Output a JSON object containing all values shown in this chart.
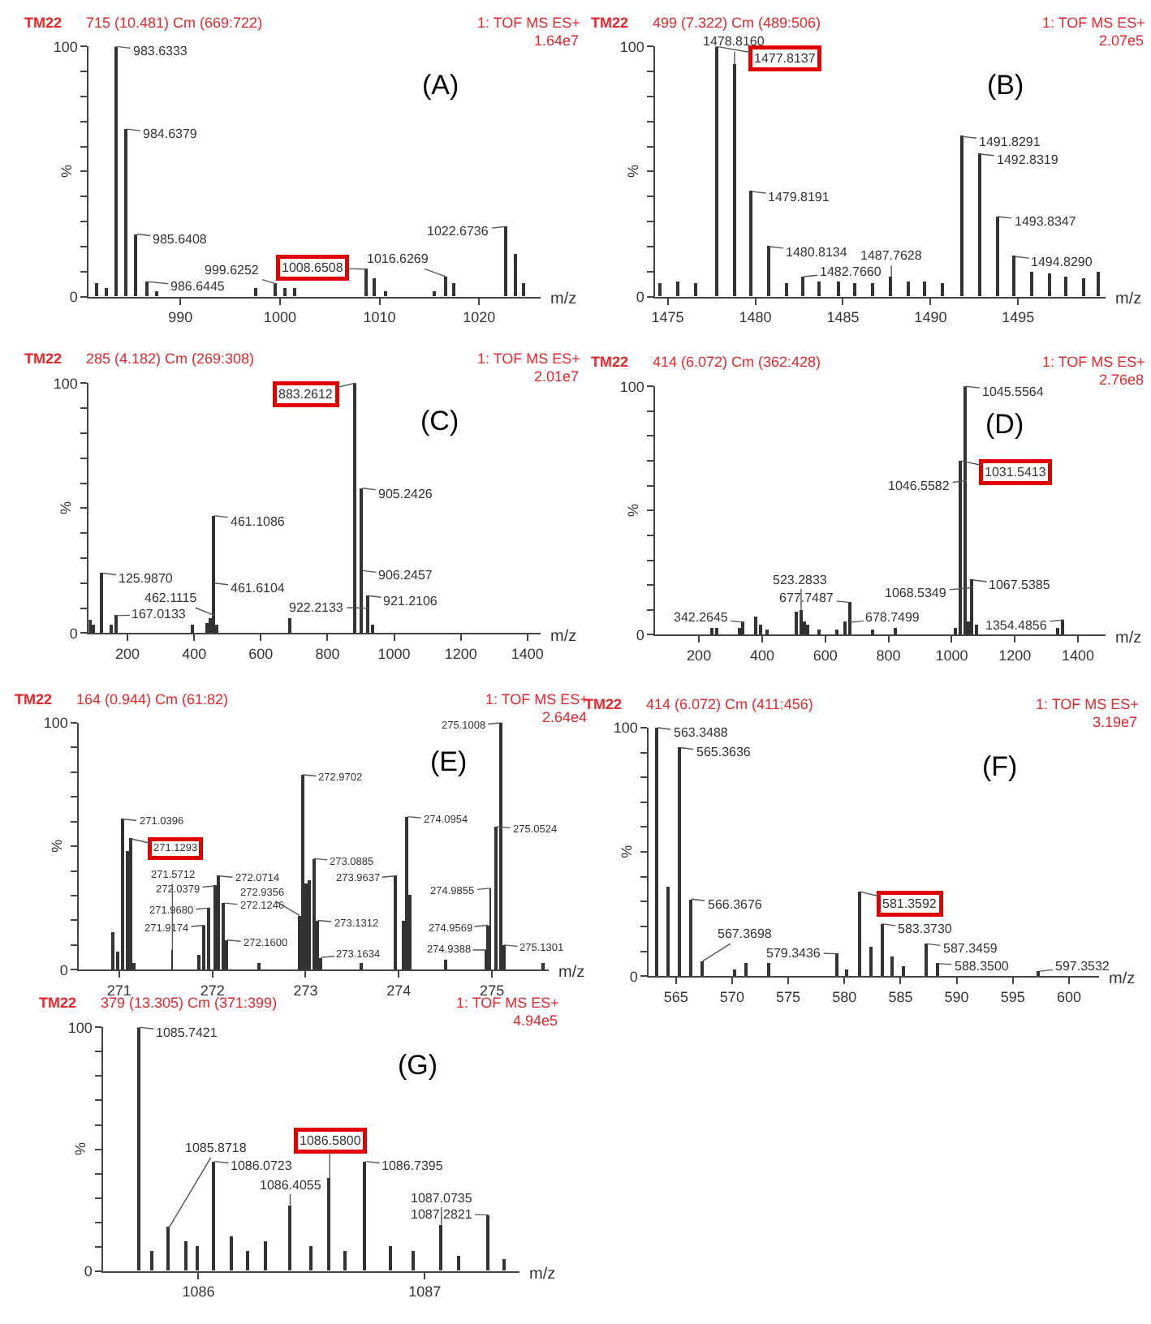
{
  "chart_data": [
    {
      "type": "bar",
      "color": "#333333",
      "xlabel": "m/z",
      "ylabel": "%",
      "xlim": [
        980.8,
        1026.2
      ],
      "xticks": [
        990,
        1000,
        1010,
        1020
      ],
      "ylim": [
        0,
        100
      ],
      "yticks": [
        0,
        {
          "value": 10,
          "label": null
        },
        {
          "value": 20,
          "label": null
        },
        {
          "value": 30,
          "label": null
        },
        {
          "value": 40,
          "label": null
        },
        {
          "value": 50,
          "label": null
        },
        {
          "value": 60,
          "label": null
        },
        {
          "value": 70,
          "label": null
        },
        {
          "value": 80,
          "label": null
        },
        {
          "value": 90,
          "label": null
        },
        100
      ],
      "x": [
        981.6,
        982.6,
        983.6333,
        984.6379,
        985.6408,
        986.6445,
        987.6,
        997.6,
        999.6252,
        1000.6,
        1001.6,
        1008.6508,
        1009.6,
        1010.6,
        1015.6,
        1016.6269,
        1017.6,
        1022.6736,
        1023.7,
        1024.6
      ],
      "values": [
        5,
        3,
        100,
        67,
        25,
        6,
        2,
        3,
        5,
        3,
        3,
        11,
        7,
        2,
        2,
        8,
        5,
        28,
        17,
        5
      ],
      "annotations": [
        "TM22",
        "715 (10.481) Cm (669:722)",
        "1: TOF MS ES+",
        "1.64e7",
        "(A)",
        {
          "text": "1008.6508",
          "x": 1008.6508,
          "y": 11
        },
        {
          "text": "983.6333",
          "x": 983.6333,
          "y": 100
        },
        {
          "text": "984.6379",
          "x": 984.6379,
          "y": 67
        },
        {
          "text": "985.6408",
          "x": 985.6408,
          "y": 25
        },
        {
          "text": "986.6445",
          "x": 986.6445,
          "y": 6
        },
        {
          "text": "999.6252",
          "x": 999.6252,
          "y": 5
        },
        {
          "text": "1016.6269",
          "x": 1016.6269,
          "y": 8
        },
        {
          "text": "1022.6736",
          "x": 1022.6736,
          "y": 28
        }
      ]
    },
    {
      "type": "bar",
      "color": "#333333",
      "xlabel": "m/z",
      "ylabel": "%",
      "xlim": [
        1474.3,
        1500
      ],
      "xticks": [
        1475,
        1480,
        1485,
        1490,
        1495
      ],
      "ylim": [
        0,
        100
      ],
      "yticks": [
        0,
        {
          "value": 10,
          "label": null
        },
        {
          "value": 20,
          "label": null
        },
        {
          "value": 30,
          "label": null
        },
        {
          "value": 40,
          "label": null
        },
        {
          "value": 50,
          "label": null
        },
        {
          "value": 60,
          "label": null
        },
        {
          "value": 70,
          "label": null
        },
        {
          "value": 80,
          "label": null
        },
        {
          "value": 90,
          "label": null
        },
        100
      ],
      "x": [
        1474.6,
        1475.6,
        1476.6,
        1477.8137,
        1478.816,
        1479.8191,
        1480.8134,
        1481.8,
        1482.766,
        1483.7,
        1484.8,
        1485.7,
        1486.7,
        1487.7628,
        1488.8,
        1489.7,
        1490.7,
        1491.8291,
        1492.8319,
        1493.8347,
        1494.829,
        1495.8,
        1496.8,
        1497.8,
        1498.8,
        1499.6
      ],
      "values": [
        5,
        6,
        5,
        100,
        93,
        42,
        20,
        5,
        8,
        6,
        6,
        5,
        5,
        8,
        6,
        6,
        5,
        64,
        57,
        32,
        16,
        10,
        9,
        8,
        7,
        10
      ],
      "annotations": [
        "TM22",
        "499 (7.322) Cm (489:506)",
        "1: TOF MS ES+",
        "2.07e5",
        "(B)",
        {
          "text": "1477.8137",
          "x": 1477.8137,
          "y": 100
        },
        {
          "text": "1478.8160",
          "x": 1478.816,
          "y": 93
        },
        {
          "text": "1479.8191",
          "x": 1479.8191,
          "y": 42
        },
        {
          "text": "1480.8134",
          "x": 1480.8134,
          "y": 20
        },
        {
          "text": "1482.7660",
          "x": 1482.766,
          "y": 8
        },
        {
          "text": "1487.7628",
          "x": 1487.7628,
          "y": 8
        },
        {
          "text": "1491.8291",
          "x": 1491.8291,
          "y": 64
        },
        {
          "text": "1492.8319",
          "x": 1492.8319,
          "y": 57
        },
        {
          "text": "1493.8347",
          "x": 1493.8347,
          "y": 32
        },
        {
          "text": "1494.8290",
          "x": 1494.829,
          "y": 16
        }
      ]
    },
    {
      "type": "bar",
      "color": "#333333",
      "xlabel": "m/z",
      "ylabel": "%",
      "xlim": [
        84,
        1440
      ],
      "xticks": [
        200,
        400,
        600,
        800,
        1000,
        1200,
        1400
      ],
      "ylim": [
        0,
        100
      ],
      "yticks": [
        0,
        {
          "value": 10,
          "label": null
        },
        {
          "value": 20,
          "label": null
        },
        {
          "value": 30,
          "label": null
        },
        {
          "value": 40,
          "label": null
        },
        {
          "value": 50,
          "label": null
        },
        {
          "value": 60,
          "label": null
        },
        {
          "value": 70,
          "label": null
        },
        {
          "value": 80,
          "label": null
        },
        {
          "value": 90,
          "label": null
        },
        100
      ],
      "x": [
        90,
        100,
        125.987,
        152,
        167.0133,
        395,
        440,
        450,
        461.1086,
        472,
        690,
        883.2612,
        905.2426,
        921.2106,
        935
      ],
      "values": [
        5,
        3,
        24,
        3,
        7,
        3,
        4,
        6,
        47,
        3,
        6,
        100,
        58,
        15,
        3
      ],
      "annotations": [
        "TM22",
        "285 (4.182) Cm (269:308)",
        "1: TOF MS ES+",
        "2.01e7",
        "(C)",
        {
          "text": "883.2612",
          "x": 883.2612,
          "y": 100
        },
        {
          "text": "125.9870",
          "x": 125.987,
          "y": 24
        },
        {
          "text": "167.0133",
          "x": 167.0133,
          "y": 7
        },
        {
          "text": "461.1086",
          "x": 461.1086,
          "y": 47
        },
        {
          "text": "461.6104",
          "x": 461.6104,
          "y": 20
        },
        {
          "text": "462.1115",
          "x": 462.1115,
          "y": 7
        },
        {
          "text": "905.2426",
          "x": 905.2426,
          "y": 58
        },
        {
          "text": "906.2457",
          "x": 906.2457,
          "y": 25
        },
        {
          "text": "921.2106",
          "x": 921.2106,
          "y": 15
        },
        {
          "text": "922.2133",
          "x": 922.2133,
          "y": 10
        }
      ]
    },
    {
      "type": "bar",
      "color": "#333333",
      "xlabel": "m/z",
      "ylabel": "%",
      "xlim": [
        62,
        1488
      ],
      "xticks": [
        200,
        400,
        600,
        800,
        1000,
        1200,
        1400
      ],
      "ylim": [
        0,
        100
      ],
      "yticks": [
        0,
        {
          "value": 10,
          "label": null
        },
        {
          "value": 20,
          "label": null
        },
        {
          "value": 30,
          "label": null
        },
        {
          "value": 40,
          "label": null
        },
        {
          "value": 50,
          "label": null
        },
        {
          "value": 60,
          "label": null
        },
        {
          "value": 70,
          "label": null
        },
        {
          "value": 80,
          "label": null
        },
        {
          "value": 90,
          "label": null
        },
        100
      ],
      "x": [
        245,
        258,
        330,
        342.2645,
        380,
        398,
        420,
        512,
        523.2833,
        535,
        545,
        580,
        640,
        665,
        677.7487,
        750,
        825,
        1015,
        1031.5413,
        1045.5564,
        1056,
        1067.5385,
        1079,
        1340,
        1354.4856
      ],
      "values": [
        3,
        3,
        3,
        5,
        7,
        4,
        2,
        9,
        10,
        5,
        4,
        2,
        2,
        5,
        13,
        2,
        3,
        3,
        70,
        100,
        5,
        22,
        4,
        3,
        6
      ],
      "annotations": [
        "TM22",
        "414 (6.072) Cm (362:428)",
        "1: TOF MS ES+",
        "2.76e8",
        "(D)",
        {
          "text": "1031.5413",
          "x": 1031.5413,
          "y": 70
        },
        {
          "text": "342.2645",
          "x": 342.2645,
          "y": 5
        },
        {
          "text": "523.2833",
          "x": 523.2833,
          "y": 10
        },
        {
          "text": "677.7487",
          "x": 677.7487,
          "y": 13
        },
        {
          "text": "678.7499",
          "x": 678.7499,
          "y": 5
        },
        {
          "text": "1045.5564",
          "x": 1045.5564,
          "y": 100
        },
        {
          "text": "1046.5582",
          "x": 1046.5582,
          "y": 62
        },
        {
          "text": "1067.5385",
          "x": 1067.5385,
          "y": 22
        },
        {
          "text": "1068.5349",
          "x": 1068.5349,
          "y": 19
        },
        {
          "text": "1354.4856",
          "x": 1354.4856,
          "y": 6
        }
      ]
    },
    {
      "type": "bar",
      "color": "#333333",
      "xlabel": "m/z",
      "ylabel": "%",
      "xlim": [
        270.57,
        275.61
      ],
      "xticks": [
        271,
        272,
        273,
        274,
        275
      ],
      "ylim": [
        0,
        100
      ],
      "yticks": [
        0,
        {
          "value": 10,
          "label": null
        },
        {
          "value": 20,
          "label": null
        },
        {
          "value": 30,
          "label": null
        },
        {
          "value": 40,
          "label": null
        },
        {
          "value": 50,
          "label": null
        },
        {
          "value": 60,
          "label": null
        },
        {
          "value": 70,
          "label": null
        },
        {
          "value": 80,
          "label": null
        },
        {
          "value": 90,
          "label": null
        },
        100
      ],
      "x": [
        270.93,
        270.98,
        271.0396,
        271.085,
        271.1293,
        271.17,
        271.5712,
        271.86,
        271.9174,
        271.968,
        272.0379,
        272.0714,
        272.1246,
        272.16,
        272.5,
        272.9356,
        272.9702,
        273.01,
        273.05,
        273.0885,
        273.1312,
        273.1634,
        273.6,
        273.9637,
        274.05,
        274.0954,
        274.13,
        274.5,
        274.9388,
        274.9569,
        274.9855,
        275.0524,
        275.1008,
        275.1301,
        275.55
      ],
      "values": [
        15,
        7,
        61,
        48,
        53,
        3,
        8,
        6,
        18,
        25,
        34,
        38,
        27,
        12,
        3,
        22,
        79,
        35,
        36,
        45,
        20,
        5,
        3,
        38,
        20,
        62,
        30,
        4,
        8,
        18,
        33,
        58,
        100,
        10,
        3
      ],
      "annotations": [
        "TM22",
        "164 (0.944) Cm (61:82)",
        "1: TOF MS ES+",
        "2.64e4",
        "(E)",
        {
          "text": "271.1293",
          "x": 271.1293,
          "y": 53
        },
        {
          "text": "271.0396",
          "x": 271.0396,
          "y": 61
        },
        {
          "text": "271.5712",
          "x": 271.5712,
          "y": 8
        },
        {
          "text": "271.9174",
          "x": 271.9174,
          "y": 18
        },
        {
          "text": "271.9680",
          "x": 271.968,
          "y": 25
        },
        {
          "text": "272.0379",
          "x": 272.0379,
          "y": 34
        },
        {
          "text": "272.0714",
          "x": 272.0714,
          "y": 38
        },
        {
          "text": "272.1246",
          "x": 272.1246,
          "y": 27
        },
        {
          "text": "272.1600",
          "x": 272.16,
          "y": 12
        },
        {
          "text": "272.9356",
          "x": 272.9356,
          "y": 22
        },
        {
          "text": "272.9702",
          "x": 272.9702,
          "y": 79
        },
        {
          "text": "273.0885",
          "x": 273.0885,
          "y": 45
        },
        {
          "text": "273.1312",
          "x": 273.1312,
          "y": 20
        },
        {
          "text": "273.1634",
          "x": 273.1634,
          "y": 5
        },
        {
          "text": "273.9637",
          "x": 273.9637,
          "y": 38
        },
        {
          "text": "274.0954",
          "x": 274.0954,
          "y": 62
        },
        {
          "text": "274.9388",
          "x": 274.9388,
          "y": 8
        },
        {
          "text": "274.9569",
          "x": 274.9569,
          "y": 18
        },
        {
          "text": "274.9855",
          "x": 274.9855,
          "y": 33
        },
        {
          "text": "275.0524",
          "x": 275.0524,
          "y": 58
        },
        {
          "text": "275.1008",
          "x": 275.1008,
          "y": 100
        },
        {
          "text": "275.1301",
          "x": 275.1301,
          "y": 10
        }
      ]
    },
    {
      "type": "bar",
      "color": "#333333",
      "xlabel": "m/z",
      "ylabel": "%",
      "xlim": [
        562.6,
        602.7
      ],
      "xticks": [
        565,
        570,
        575,
        580,
        585,
        590,
        595,
        600
      ],
      "ylim": [
        0,
        100
      ],
      "yticks": [
        0,
        {
          "value": 10,
          "label": null
        },
        {
          "value": 20,
          "label": null
        },
        {
          "value": 30,
          "label": null
        },
        {
          "value": 40,
          "label": null
        },
        {
          "value": 50,
          "label": null
        },
        {
          "value": 60,
          "label": null
        },
        {
          "value": 70,
          "label": null
        },
        {
          "value": 80,
          "label": null
        },
        {
          "value": 90,
          "label": null
        },
        100
      ],
      "x": [
        563.3488,
        564.35,
        565.3636,
        566.3676,
        567.3698,
        570.3,
        571.3,
        573.3,
        579.3436,
        580.3,
        581.3592,
        582.36,
        583.373,
        584.37,
        585.37,
        587.3459,
        588.35,
        597.3532
      ],
      "values": [
        100,
        36,
        92,
        31,
        6,
        3,
        5,
        5,
        9,
        3,
        34,
        12,
        21,
        8,
        4,
        13,
        5,
        2
      ],
      "annotations": [
        "TM22",
        "414 (6.072) Cm (411:456)",
        "1: TOF MS ES+",
        "3.19e7",
        "(F)",
        {
          "text": "581.3592",
          "x": 581.3592,
          "y": 34
        },
        {
          "text": "563.3488",
          "x": 563.3488,
          "y": 100
        },
        {
          "text": "565.3636",
          "x": 565.3636,
          "y": 92
        },
        {
          "text": "566.3676",
          "x": 566.3676,
          "y": 31
        },
        {
          "text": "567.3698",
          "x": 567.3698,
          "y": 6
        },
        {
          "text": "579.3436",
          "x": 579.3436,
          "y": 9
        },
        {
          "text": "583.3730",
          "x": 583.373,
          "y": 21
        },
        {
          "text": "587.3459",
          "x": 587.3459,
          "y": 13
        },
        {
          "text": "588.3500",
          "x": 588.35,
          "y": 5
        },
        {
          "text": "597.3532",
          "x": 597.3532,
          "y": 2
        }
      ]
    },
    {
      "type": "bar",
      "color": "#333333",
      "xlabel": "m/z",
      "ylabel": "%",
      "xlim": [
        1085.58,
        1087.42
      ],
      "xticks": [
        1086,
        1087
      ],
      "ylim": [
        0,
        100
      ],
      "yticks": [
        0,
        {
          "value": 10,
          "label": null
        },
        {
          "value": 20,
          "label": null
        },
        {
          "value": 30,
          "label": null
        },
        {
          "value": 40,
          "label": null
        },
        {
          "value": 50,
          "label": null
        },
        {
          "value": 60,
          "label": null
        },
        {
          "value": 70,
          "label": null
        },
        {
          "value": 80,
          "label": null
        },
        {
          "value": 90,
          "label": null
        },
        100
      ],
      "x": [
        1085.7421,
        1085.8,
        1085.8718,
        1085.95,
        1086.0,
        1086.0723,
        1086.15,
        1086.22,
        1086.3,
        1086.4055,
        1086.5,
        1086.58,
        1086.65,
        1086.7395,
        1086.85,
        1086.95,
        1087.0735,
        1087.15,
        1087.2821,
        1087.35
      ],
      "values": [
        100,
        8,
        18,
        12,
        10,
        45,
        14,
        8,
        12,
        27,
        10,
        38,
        8,
        45,
        10,
        8,
        19,
        6,
        23,
        5
      ],
      "annotations": [
        "TM22",
        "379 (13.305) Cm (371:399)",
        "1: TOF MS ES+",
        "4.94e5",
        "(G)",
        {
          "text": "1086.5800",
          "x": 1086.58,
          "y": 38
        },
        {
          "text": "1085.7421",
          "x": 1085.7421,
          "y": 100
        },
        {
          "text": "1085.8718",
          "x": 1085.8718,
          "y": 18
        },
        {
          "text": "1086.0723",
          "x": 1086.0723,
          "y": 45
        },
        {
          "text": "1086.4055",
          "x": 1086.4055,
          "y": 27
        },
        {
          "text": "1086.7395",
          "x": 1086.7395,
          "y": 45
        },
        {
          "text": "1087.0735",
          "x": 1087.0735,
          "y": 19
        },
        {
          "text": "1087.2821",
          "x": 1087.2821,
          "y": 23
        }
      ]
    }
  ]
}
